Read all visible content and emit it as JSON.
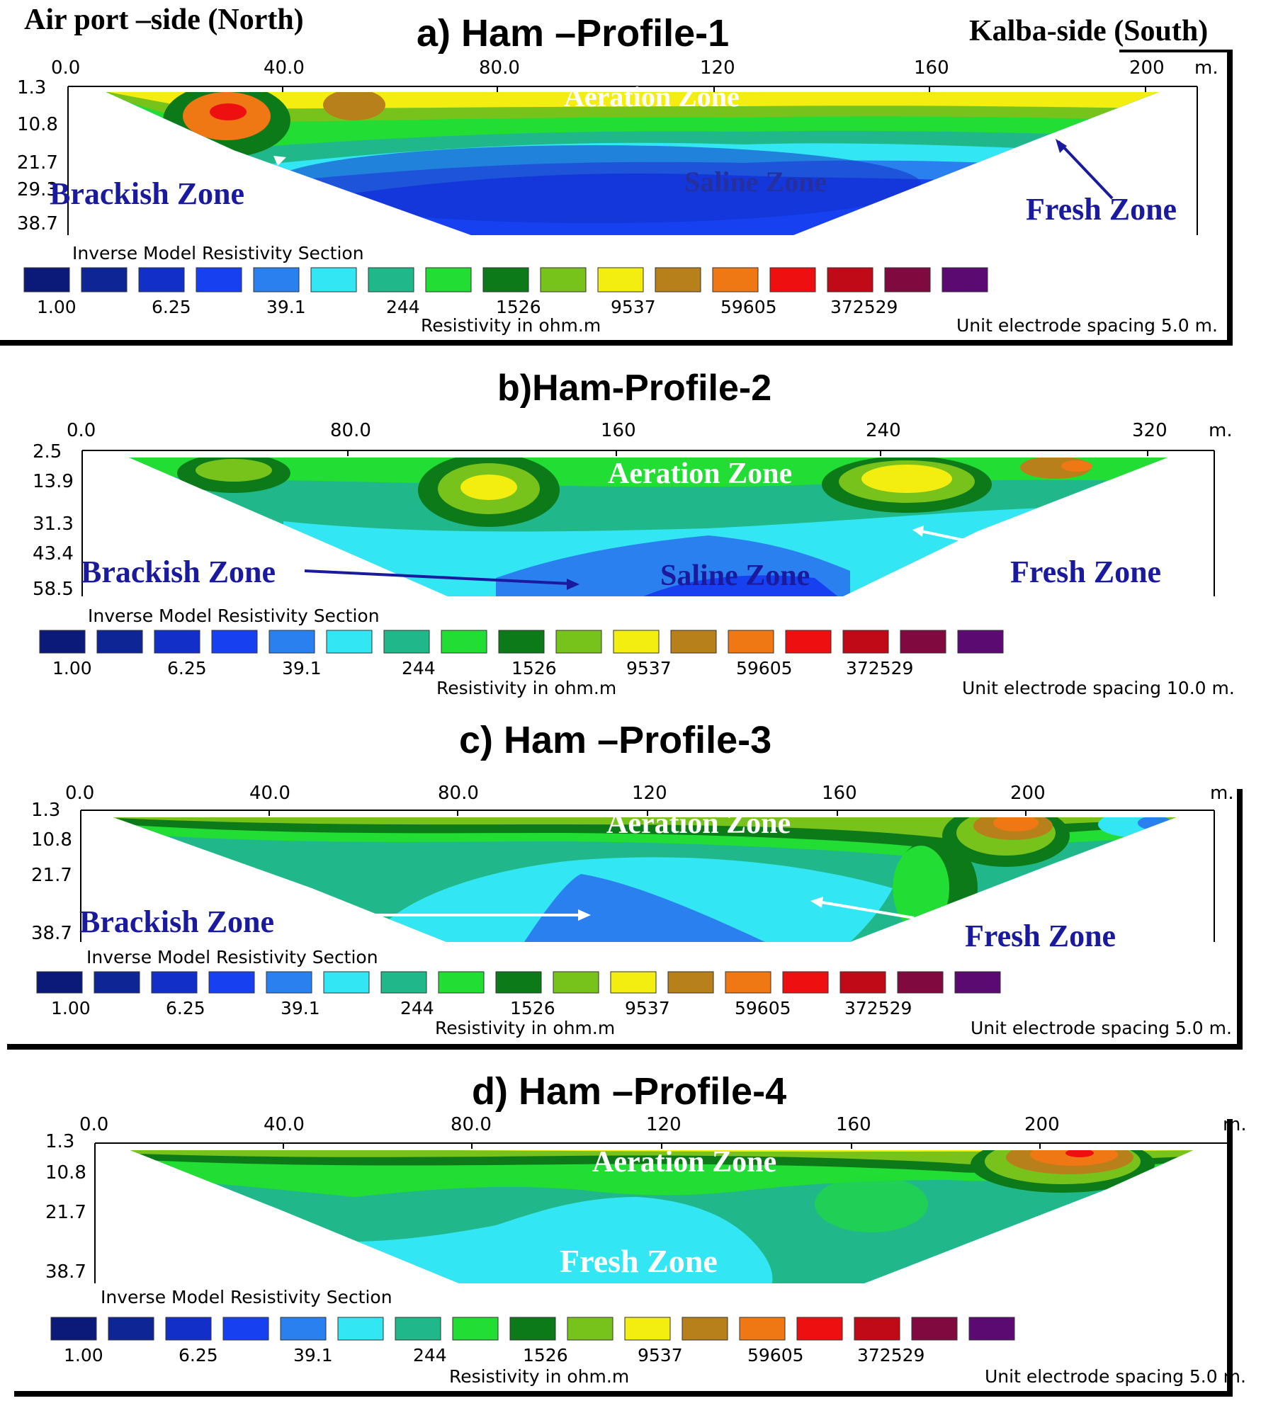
{
  "header": {
    "north_label": "Air port –side (North)",
    "south_label": "Kalba-side (South)"
  },
  "legend": {
    "colors": [
      "#0b1a78",
      "#0e2596",
      "#1230c8",
      "#1640f0",
      "#2a80ee",
      "#33e6f4",
      "#20b88a",
      "#22dd33",
      "#0d7a1a",
      "#78c21c",
      "#f3ee10",
      "#b8801a",
      "#f07814",
      "#ee1010",
      "#c00a18",
      "#800a40",
      "#5a0a70"
    ],
    "labels": [
      "1.00",
      "6.25",
      "39.1",
      "244",
      "1526",
      "9537",
      "59605",
      "372529"
    ]
  },
  "chart_data": [
    {
      "type": "heatmap",
      "title": "a) Ham –Profile-1",
      "x_ticks": [
        "0.0",
        "40.0",
        "80.0",
        "120",
        "160",
        "200"
      ],
      "x_unit": "m.",
      "depth_ticks": [
        "1.3",
        "10.8",
        "21.7",
        "29.3",
        "38.7"
      ],
      "legend_title": "Inverse Model Resistivity Section",
      "colorbar_labels": [
        "1.00",
        "6.25",
        "39.1",
        "244",
        "1526",
        "9537",
        "59605",
        "372529"
      ],
      "xlabel": "Resistivity in ohm.m",
      "spacing_note": "Unit electrode spacing 5.0 m.",
      "zones": [
        "Aeration Zone",
        "Saline Zone",
        "Brackish Zone",
        "Fresh Zone"
      ]
    },
    {
      "type": "heatmap",
      "title": "b)Ham-Profile-2",
      "x_ticks": [
        "0.0",
        "80.0",
        "160",
        "240",
        "320"
      ],
      "x_unit": "m.",
      "depth_ticks": [
        "2.5",
        "13.9",
        "31.3",
        "43.4",
        "58.5"
      ],
      "legend_title": "Inverse Model Resistivity Section",
      "colorbar_labels": [
        "1.00",
        "6.25",
        "39.1",
        "244",
        "1526",
        "9537",
        "59605",
        "372529"
      ],
      "xlabel": "Resistivity in ohm.m",
      "spacing_note": "Unit electrode spacing 10.0 m.",
      "zones": [
        "Aeration Zone",
        "Saline Zone",
        "Brackish Zone",
        "Fresh Zone"
      ]
    },
    {
      "type": "heatmap",
      "title": "c) Ham –Profile-3",
      "x_ticks": [
        "0.0",
        "40.0",
        "80.0",
        "120",
        "160",
        "200"
      ],
      "x_unit": "m.",
      "depth_ticks": [
        "1.3",
        "10.8",
        "21.7",
        "38.7"
      ],
      "legend_title": "Inverse Model Resistivity Section",
      "colorbar_labels": [
        "1.00",
        "6.25",
        "39.1",
        "244",
        "1526",
        "9537",
        "59605",
        "372529"
      ],
      "xlabel": "Resistivity in ohm.m",
      "spacing_note": "Unit electrode spacing 5.0 m.",
      "zones": [
        "Aeration Zone",
        "Brackish Zone",
        "Fresh Zone"
      ]
    },
    {
      "type": "heatmap",
      "title": "d) Ham –Profile-4",
      "x_ticks": [
        "0.0",
        "40.0",
        "80.0",
        "120",
        "160",
        "200"
      ],
      "x_unit": "m.",
      "depth_ticks": [
        "1.3",
        "10.8",
        "21.7",
        "38.7"
      ],
      "legend_title": "Inverse Model Resistivity Section",
      "colorbar_labels": [
        "1.00",
        "6.25",
        "39.1",
        "244",
        "1526",
        "9537",
        "59605",
        "372529"
      ],
      "xlabel": "Resistivity in ohm.m",
      "spacing_note": "Unit electrode spacing 5.0 m.",
      "zones": [
        "Aeration Zone",
        "Fresh Zone"
      ]
    }
  ]
}
